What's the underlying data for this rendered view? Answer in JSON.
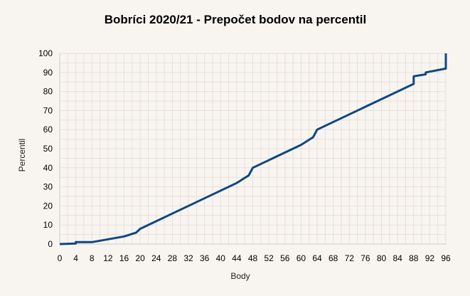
{
  "chart_data": {
    "type": "line",
    "title": "Bobríci 2020/21 - Prepočet bodov na percentil",
    "xlabel": "Body",
    "ylabel": "Percentil",
    "xlim": [
      0,
      96
    ],
    "ylim": [
      0,
      100
    ],
    "xticks": [
      0,
      4,
      8,
      12,
      16,
      20,
      24,
      28,
      32,
      36,
      40,
      44,
      48,
      52,
      56,
      60,
      64,
      68,
      72,
      76,
      80,
      84,
      88,
      92,
      96
    ],
    "yticks": [
      0,
      10,
      20,
      30,
      40,
      50,
      60,
      70,
      80,
      90,
      100
    ],
    "grid": true,
    "legend": "none",
    "line_color": "#0f4782",
    "series": [
      {
        "x": [
          0,
          4,
          4,
          8,
          12,
          16,
          19,
          20,
          44,
          47,
          48,
          60,
          63,
          64,
          88,
          88,
          91,
          91,
          96,
          96
        ],
        "y": [
          0,
          0.3,
          1,
          1,
          2.5,
          4,
          6,
          8,
          32,
          36,
          40,
          52,
          56,
          60,
          84,
          88,
          89,
          90,
          92,
          100
        ]
      }
    ]
  }
}
